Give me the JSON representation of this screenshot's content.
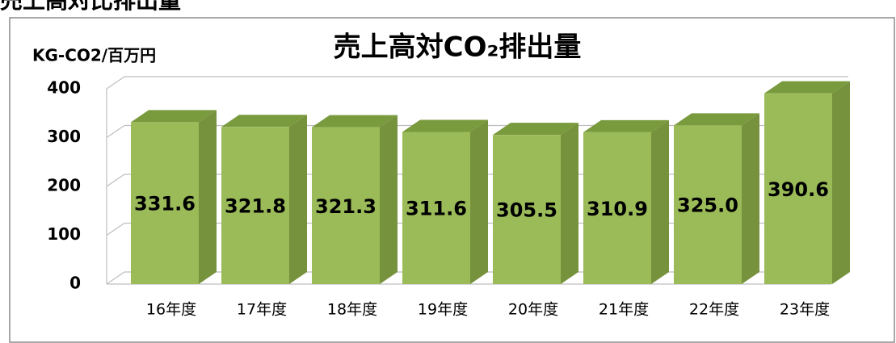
{
  "heading": "売上高対比排出量",
  "chart_data": {
    "type": "bar3d",
    "title": "売上高対CO₂排出量",
    "y_label": "KG-CO2/百万円",
    "categories": [
      "16年度",
      "17年度",
      "18年度",
      "19年度",
      "20年度",
      "21年度",
      "22年度",
      "23年度"
    ],
    "values": [
      331.6,
      321.8,
      321.3,
      311.6,
      305.5,
      310.9,
      325.0,
      390.6
    ],
    "value_labels": [
      "331.6",
      "321.8",
      "321.3",
      "311.6",
      "305.5",
      "310.9",
      "325.0",
      "390.6"
    ],
    "color": "#9bbb59",
    "side_color": "#76923c",
    "top_color": "#7a9a3e",
    "ylim": [
      0,
      400
    ],
    "yticks": [
      0,
      100,
      200,
      300,
      400
    ],
    "grid": true
  }
}
